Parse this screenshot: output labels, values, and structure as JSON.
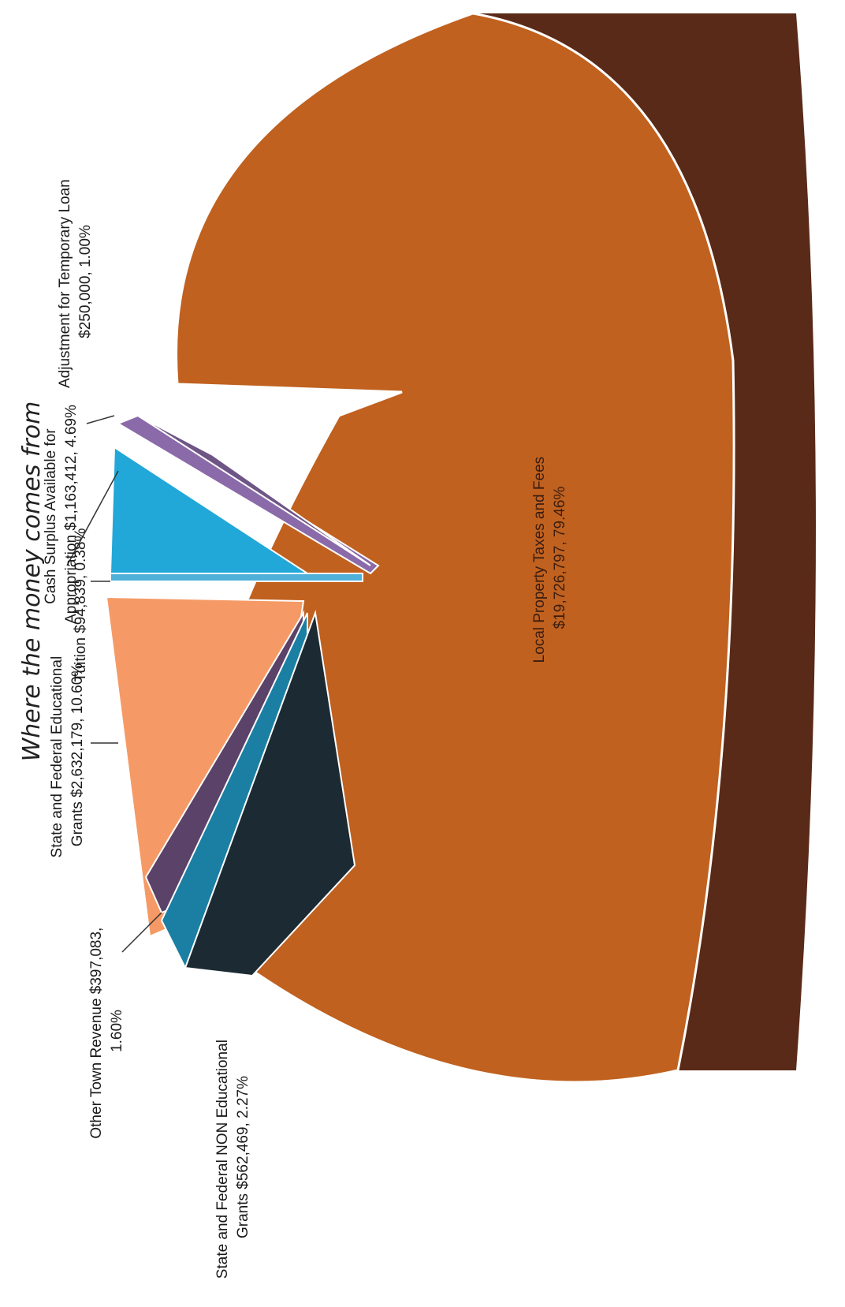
{
  "chart_data": {
    "type": "pie",
    "title": "Where the money comes from",
    "slices": [
      {
        "key": "local_property",
        "lines": [
          "Local Property Taxes and Fees",
          "$19,726,797, 79.46%"
        ],
        "value": 19726797,
        "percent": 79.46,
        "color": "#c0611f",
        "side": "#5a2a18"
      },
      {
        "key": "adjustment",
        "lines": [
          "Adjustment for Temporary Loan",
          "$250,000, 1.00%"
        ],
        "value": 250000,
        "percent": 1.0,
        "color": "#8a6aa8",
        "side": "#4e3a63"
      },
      {
        "key": "cash_surplus",
        "lines": [
          "Cash Surplus Available for",
          "Appropriation  $1,163,412, 4.69%"
        ],
        "value": 1163412,
        "percent": 4.69,
        "color": "#6e5585",
        "side": "#3f2f4f"
      },
      {
        "key": "cash_sliver",
        "lines": [],
        "value": 0,
        "percent": 0,
        "color": "#2d8fb0",
        "side": "#1d5d73"
      },
      {
        "key": "state_fed_edu_blue",
        "lines": [],
        "value": 0,
        "percent": 0,
        "color": "#22a7d9",
        "side": "#136b8c"
      },
      {
        "key": "tuition",
        "lines": [
          "Tuition  $94,839, 0.38%"
        ],
        "value": 94839,
        "percent": 0.38,
        "color": "#4fb0d9",
        "side": "#2a7ea3"
      },
      {
        "key": "state_fed_edu",
        "lines": [
          "State and Federal Educational",
          "Grants  $2,632,179, 10.60%"
        ],
        "value": 2632179,
        "percent": 10.6,
        "color": "#f59a66",
        "side": "#8a4a20"
      },
      {
        "key": "other_town",
        "lines": [
          "Other Town Revenue $397,083,",
          "1.60%"
        ],
        "value": 397083,
        "percent": 1.6,
        "color": "#5a4268",
        "side": "#33243d"
      },
      {
        "key": "state_fed_non_edu_teal",
        "lines": [],
        "value": 0,
        "percent": 0,
        "color": "#1b7fa3",
        "side": "#0f4d63"
      },
      {
        "key": "state_fed_non_edu",
        "lines": [
          "State and Federal NON Educational",
          "Grants  $562,469, 2.27%"
        ],
        "value": 562469,
        "percent": 2.27,
        "color": "#1c2b33",
        "side": "#0d1519"
      }
    ]
  }
}
